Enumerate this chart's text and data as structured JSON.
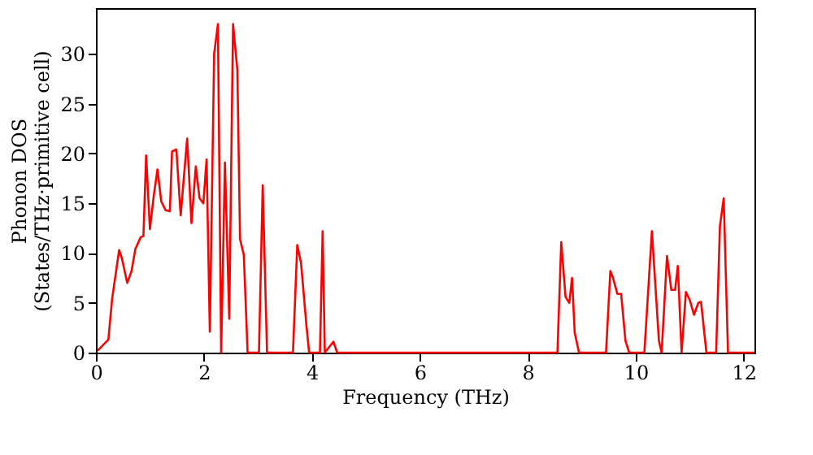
{
  "chart_data": {
    "type": "line",
    "xlabel": "Frequency (THz)",
    "ylabel": "Phonon DOS\n(States/THz·primitive cell)",
    "xlim": [
      0,
      12.2
    ],
    "ylim": [
      0,
      34.6
    ],
    "xticks": [
      0,
      2,
      4,
      6,
      8,
      10,
      12
    ],
    "yticks": [
      0,
      5,
      10,
      15,
      20,
      25,
      30
    ],
    "grid": false,
    "legend": false,
    "x": [
      0.03,
      0.23,
      0.3,
      0.43,
      0.48,
      0.58,
      0.66,
      0.73,
      0.83,
      0.88,
      0.93,
      1.0,
      1.07,
      1.14,
      1.21,
      1.29,
      1.37,
      1.41,
      1.49,
      1.57,
      1.69,
      1.77,
      1.85,
      1.92,
      1.99,
      2.05,
      2.11,
      2.19,
      2.26,
      2.32,
      2.39,
      2.47,
      2.54,
      2.62,
      2.67,
      2.74,
      2.81,
      3.02,
      3.09,
      3.17,
      3.65,
      3.73,
      3.8,
      3.9,
      3.95,
      4.15,
      4.2,
      4.24,
      4.4,
      4.47,
      8.55,
      8.62,
      8.7,
      8.77,
      8.82,
      8.87,
      8.95,
      9.45,
      9.53,
      9.58,
      9.66,
      9.73,
      9.81,
      9.88,
      10.16,
      10.3,
      10.43,
      10.48,
      10.58,
      10.66,
      10.73,
      10.78,
      10.85,
      10.93,
      11.0,
      11.08,
      11.16,
      11.21,
      11.31,
      11.49,
      11.56,
      11.63,
      11.71,
      12.2
    ],
    "series": [
      {
        "color": "#ff0000",
        "values": [
          0.2,
          1.3,
          5.4,
          10.3,
          9.5,
          7,
          8.2,
          10.4,
          11.6,
          11.7,
          19.8,
          12.4,
          15.7,
          18.4,
          15.2,
          14.3,
          14.2,
          20.2,
          20.4,
          13.8,
          21.5,
          13,
          18.7,
          15.5,
          15,
          19.4,
          2.1,
          30,
          33,
          0,
          19.1,
          3.4,
          33,
          28.4,
          11.4,
          9.8,
          0,
          0,
          16.8,
          0,
          0,
          10.8,
          9,
          2.7,
          0,
          0,
          12.2,
          0,
          1.1,
          0,
          0,
          11.1,
          5.6,
          5,
          7.5,
          2,
          0,
          0,
          8.2,
          7.5,
          5.9,
          5.9,
          1.2,
          0,
          0,
          12.2,
          1.2,
          0,
          9.7,
          6.3,
          6.3,
          8.7,
          0,
          6.1,
          5.3,
          3.8,
          5,
          5.1,
          0,
          0,
          12.7,
          15.5,
          0,
          0
        ]
      }
    ]
  }
}
